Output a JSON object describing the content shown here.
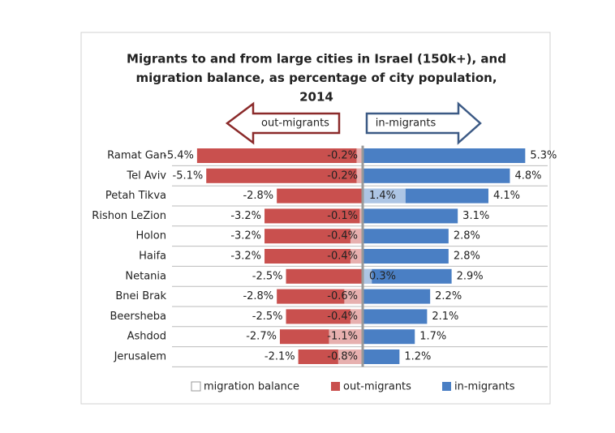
{
  "chart_data": {
    "type": "diverging-bar",
    "title": [
      "Migrants to and from large cities in Israel (150k+), and",
      "migration balance, as percentage of city population,",
      "2014"
    ],
    "annotations": [
      "out-migrants",
      "in-migrants"
    ],
    "categories": [
      "Ramat Gan",
      "Tel Aviv",
      "Petah Tikva",
      "Rishon LeZion",
      "Holon",
      "Haifa",
      "Netania",
      "Bnei Brak",
      "Beersheba",
      "Ashdod",
      "Jerusalem"
    ],
    "series": [
      {
        "name": "migration balance",
        "color": "#ffffff",
        "values": [
          -0.2,
          -0.2,
          1.4,
          -0.1,
          -0.4,
          -0.4,
          0.3,
          -0.6,
          -0.4,
          -1.1,
          -0.8
        ],
        "value_labels": [
          "-0.2%",
          "-0.2%",
          "1.4%",
          "-0.1%",
          "-0.4%",
          "-0.4%",
          "0.3%",
          "-0.6%",
          "-0.4%",
          "-1.1%",
          "-0.8%"
        ]
      },
      {
        "name": "out-migrants",
        "color": "#c9504e",
        "values": [
          -5.4,
          -5.1,
          -2.8,
          -3.2,
          -3.2,
          -3.2,
          -2.5,
          -2.8,
          -2.5,
          -2.7,
          -2.1
        ],
        "value_labels": [
          "-5.4%",
          "-5.1%",
          "-2.8%",
          "-3.2%",
          "-3.2%",
          "-3.2%",
          "-2.5%",
          "-2.8%",
          "-2.5%",
          "-2.7%",
          "-2.1%"
        ]
      },
      {
        "name": "in-migrants",
        "color": "#4a7fc4",
        "values": [
          5.3,
          4.8,
          4.1,
          3.1,
          2.8,
          2.8,
          2.9,
          2.2,
          2.1,
          1.7,
          1.2
        ],
        "value_labels": [
          "5.3%",
          "4.8%",
          "4.1%",
          "3.1%",
          "2.8%",
          "2.8%",
          "2.9%",
          "2.2%",
          "2.1%",
          "1.7%",
          "1.2%"
        ]
      }
    ]
  }
}
